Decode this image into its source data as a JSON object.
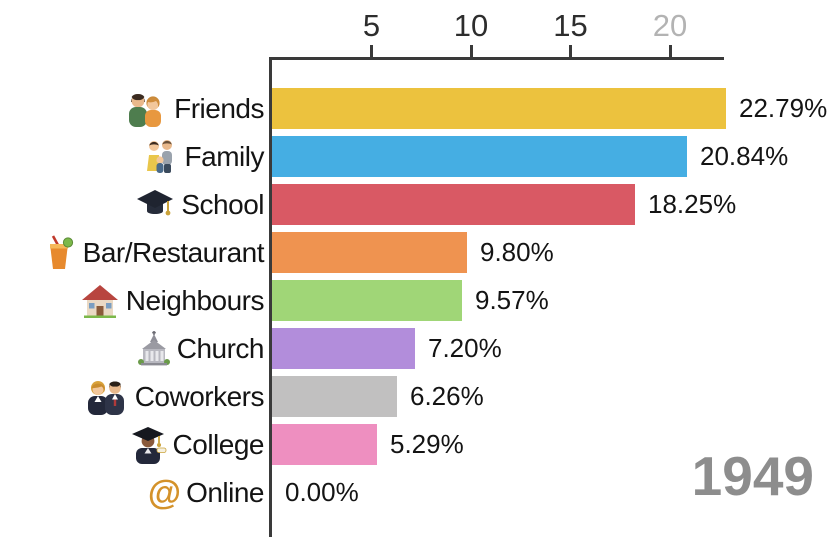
{
  "chart_data": {
    "type": "bar",
    "orientation": "horizontal",
    "title": "",
    "categories": [
      "Friends",
      "Family",
      "School",
      "Bar/Restaurant",
      "Neighbours",
      "Church",
      "Coworkers",
      "College",
      "Online"
    ],
    "values": [
      22.79,
      20.84,
      18.25,
      9.8,
      9.57,
      7.2,
      6.26,
      5.29,
      0.0
    ],
    "value_labels": [
      "22.79%",
      "20.84%",
      "18.25%",
      "9.80%",
      "9.57%",
      "7.20%",
      "6.26%",
      "5.29%",
      "0.00%"
    ],
    "bar_colors": [
      "#ecc23e",
      "#45aee3",
      "#d95964",
      "#ef9350",
      "#a0d677",
      "#b28ddb",
      "#c1c0c0",
      "#ee8fc0",
      "#ffffff"
    ],
    "icons": [
      "couple",
      "family",
      "graduation-cap",
      "cocktail",
      "house",
      "church",
      "business-people",
      "graduate",
      "at-sign"
    ],
    "at_sign_glyph": "@",
    "axis": {
      "side": "top",
      "ticks": [
        "5",
        "10",
        "15",
        "20"
      ],
      "muted_tick": "20",
      "xlim": [
        0,
        22.7
      ],
      "grid": false
    },
    "legend": "none",
    "year": "1949"
  }
}
